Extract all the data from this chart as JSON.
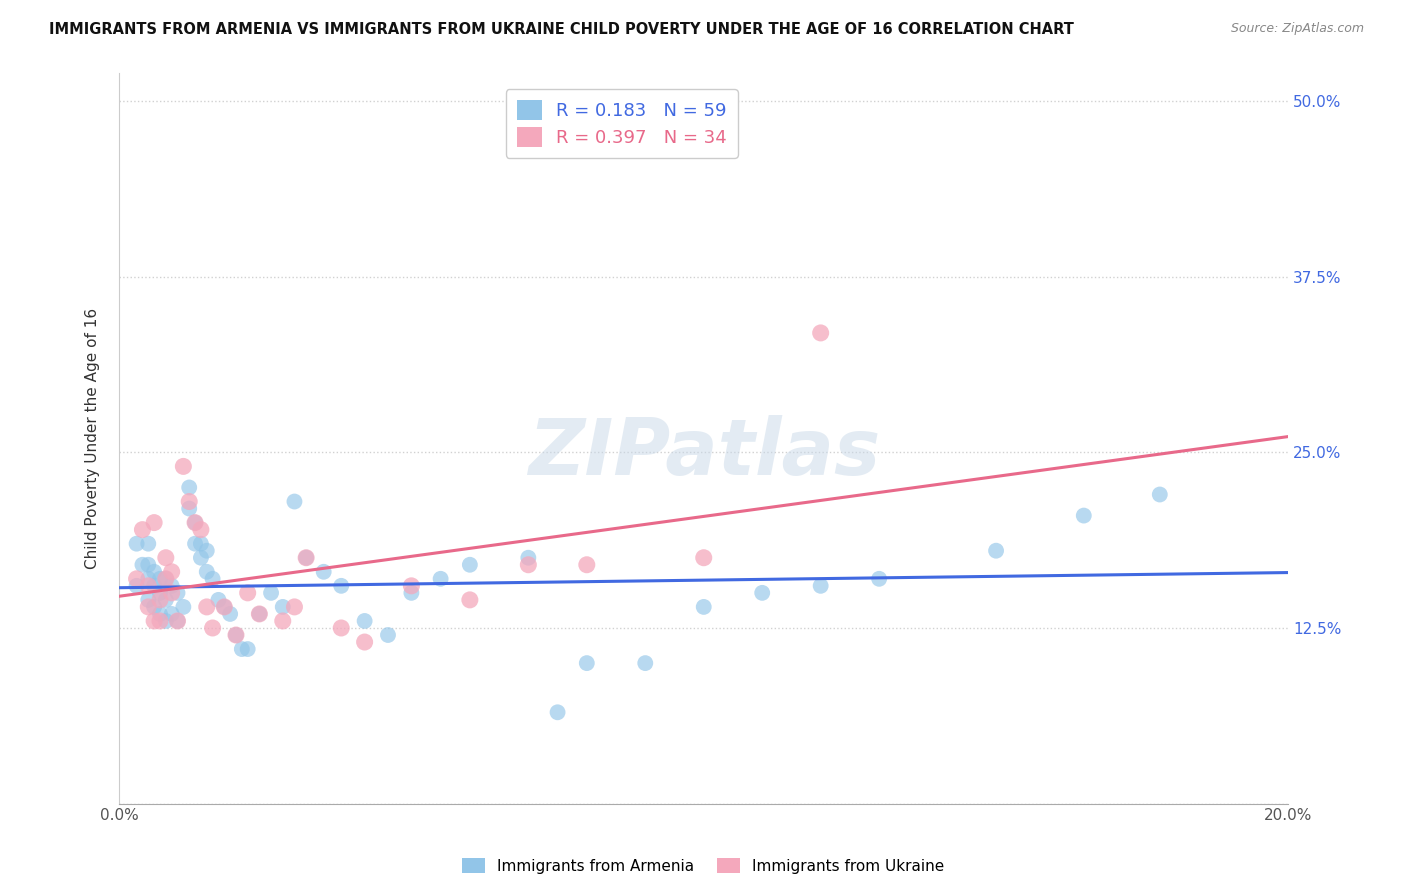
{
  "title": "IMMIGRANTS FROM ARMENIA VS IMMIGRANTS FROM UKRAINE CHILD POVERTY UNDER THE AGE OF 16 CORRELATION CHART",
  "source": "Source: ZipAtlas.com",
  "ylabel": "Child Poverty Under the Age of 16",
  "xlim": [
    0.0,
    0.2
  ],
  "ylim": [
    0.0,
    0.52
  ],
  "ytick_positions": [
    0.0,
    0.125,
    0.25,
    0.375,
    0.5
  ],
  "yticklabels_right": [
    "",
    "12.5%",
    "25.0%",
    "37.5%",
    "50.0%"
  ],
  "r_armenia": 0.183,
  "n_armenia": 59,
  "r_ukraine": 0.397,
  "n_ukraine": 34,
  "color_armenia": "#92C5E8",
  "color_ukraine": "#F4A8BC",
  "line_color_armenia": "#4169E1",
  "line_color_ukraine": "#E8698A",
  "background_color": "#ffffff",
  "grid_color": "#cccccc",
  "watermark": "ZIPatlas",
  "armenia_x": [
    0.003,
    0.003,
    0.004,
    0.005,
    0.005,
    0.005,
    0.005,
    0.006,
    0.006,
    0.006,
    0.007,
    0.007,
    0.007,
    0.008,
    0.008,
    0.008,
    0.009,
    0.009,
    0.01,
    0.01,
    0.011,
    0.012,
    0.012,
    0.013,
    0.013,
    0.014,
    0.014,
    0.015,
    0.015,
    0.016,
    0.017,
    0.018,
    0.019,
    0.02,
    0.021,
    0.022,
    0.024,
    0.026,
    0.028,
    0.03,
    0.032,
    0.035,
    0.038,
    0.042,
    0.046,
    0.05,
    0.055,
    0.06,
    0.07,
    0.075,
    0.08,
    0.09,
    0.1,
    0.11,
    0.12,
    0.13,
    0.15,
    0.165,
    0.178
  ],
  "armenia_y": [
    0.155,
    0.185,
    0.17,
    0.145,
    0.16,
    0.17,
    0.185,
    0.14,
    0.155,
    0.165,
    0.135,
    0.15,
    0.16,
    0.13,
    0.145,
    0.16,
    0.135,
    0.155,
    0.13,
    0.15,
    0.14,
    0.225,
    0.21,
    0.2,
    0.185,
    0.175,
    0.185,
    0.165,
    0.18,
    0.16,
    0.145,
    0.14,
    0.135,
    0.12,
    0.11,
    0.11,
    0.135,
    0.15,
    0.14,
    0.215,
    0.175,
    0.165,
    0.155,
    0.13,
    0.12,
    0.15,
    0.16,
    0.17,
    0.175,
    0.065,
    0.1,
    0.1,
    0.14,
    0.15,
    0.155,
    0.16,
    0.18,
    0.205,
    0.22
  ],
  "ukraine_x": [
    0.003,
    0.004,
    0.005,
    0.005,
    0.006,
    0.006,
    0.007,
    0.007,
    0.008,
    0.008,
    0.009,
    0.009,
    0.01,
    0.011,
    0.012,
    0.013,
    0.014,
    0.015,
    0.016,
    0.018,
    0.02,
    0.022,
    0.024,
    0.028,
    0.03,
    0.032,
    0.038,
    0.042,
    0.05,
    0.06,
    0.07,
    0.08,
    0.1,
    0.12
  ],
  "ukraine_y": [
    0.16,
    0.195,
    0.14,
    0.155,
    0.13,
    0.2,
    0.13,
    0.145,
    0.16,
    0.175,
    0.15,
    0.165,
    0.13,
    0.24,
    0.215,
    0.2,
    0.195,
    0.14,
    0.125,
    0.14,
    0.12,
    0.15,
    0.135,
    0.13,
    0.14,
    0.175,
    0.125,
    0.115,
    0.155,
    0.145,
    0.17,
    0.17,
    0.175,
    0.335
  ]
}
